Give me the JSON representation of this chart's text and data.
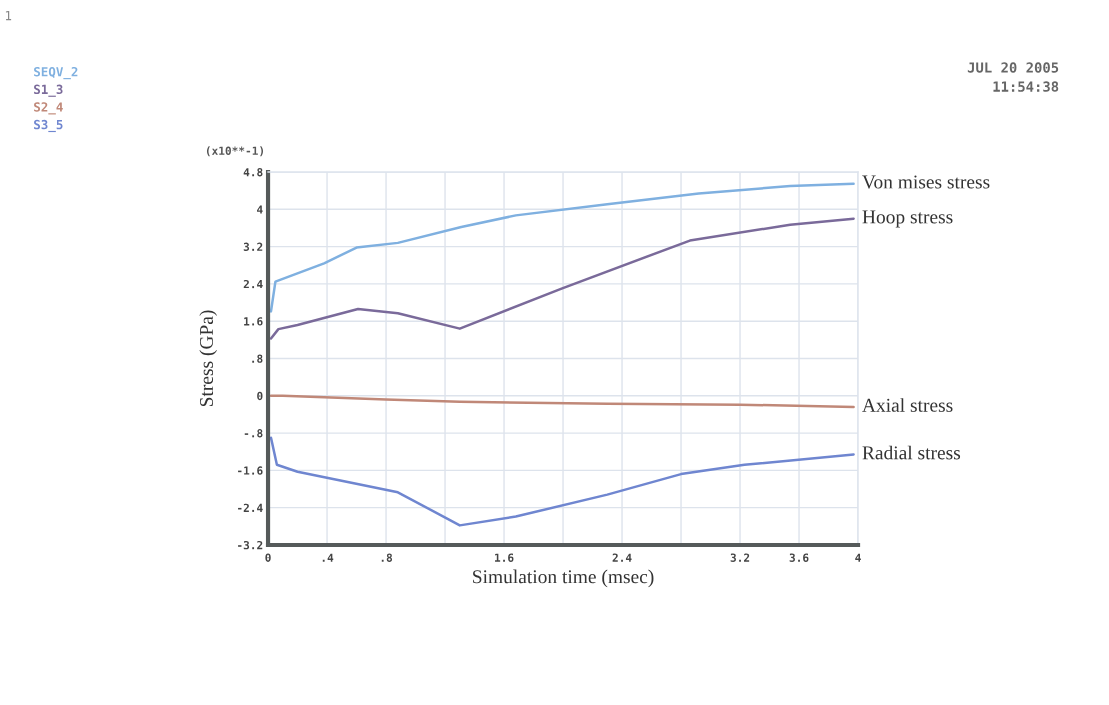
{
  "chart_data": {
    "type": "line",
    "xlabel": "Simulation time (msec)",
    "ylabel": "Stress (GPa)",
    "annotations": [
      "1",
      "SEQV_2",
      "S1_3",
      "S2_4",
      "S3_5",
      "JUL 20 2005",
      "11:54:38",
      "(x10**-1)"
    ],
    "xlim": [
      0,
      4
    ],
    "ylim": [
      -3.2,
      4.8
    ],
    "xticks": [
      0,
      {
        "value": 0.4,
        "label": ".4"
      },
      {
        "value": 0.8,
        "label": ".8"
      },
      {
        "value": 1.2,
        "label": null
      },
      1.6,
      {
        "value": 2.0,
        "label": null
      },
      2.4,
      {
        "value": 2.8,
        "label": null
      },
      3.2,
      3.6,
      4
    ],
    "yticks": [
      {
        "value": -3.2,
        "label": "-3.2"
      },
      {
        "value": -2.4,
        "label": "-2.4"
      },
      {
        "value": -1.6,
        "label": "-1.6"
      },
      {
        "value": -0.8,
        "label": "-.8"
      },
      0,
      {
        "value": 0.8,
        "label": ".8"
      },
      1.6,
      2.4,
      3.2,
      4,
      4.8
    ],
    "grid": true,
    "marker": "none",
    "line_style": "solid",
    "legend": false,
    "series": [
      {
        "name": "Von mises stress",
        "color": "#7fb0e0",
        "x": [
          0.02,
          0.05,
          0.38,
          0.6,
          0.88,
          1.31,
          1.68,
          2.3,
          2.92,
          3.54,
          3.97
        ],
        "values": [
          1.81,
          2.45,
          2.84,
          3.18,
          3.28,
          3.62,
          3.87,
          4.11,
          4.34,
          4.5,
          4.55
        ]
      },
      {
        "name": "Hoop stress",
        "color": "#7a6a9a",
        "x": [
          0.02,
          0.07,
          0.2,
          0.61,
          0.88,
          1.3,
          1.99,
          2.86,
          3.54,
          3.97
        ],
        "values": [
          1.23,
          1.43,
          1.52,
          1.86,
          1.77,
          1.44,
          2.3,
          3.33,
          3.67,
          3.8
        ]
      },
      {
        "name": "Axial stress",
        "color": "#c08878",
        "x": [
          0.02,
          0.1,
          0.8,
          1.3,
          2.3,
          3.2,
          3.97
        ],
        "values": [
          0.0,
          0.0,
          -0.08,
          -0.13,
          -0.17,
          -0.19,
          -0.24
        ]
      },
      {
        "name": "Radial stress",
        "color": "#6f86d0",
        "x": [
          0.02,
          0.06,
          0.2,
          0.88,
          1.3,
          1.68,
          2.3,
          2.8,
          3.23,
          3.97
        ],
        "values": [
          -0.9,
          -1.48,
          -1.63,
          -2.07,
          -2.78,
          -2.59,
          -2.12,
          -1.68,
          -1.48,
          -1.26
        ]
      }
    ]
  }
}
